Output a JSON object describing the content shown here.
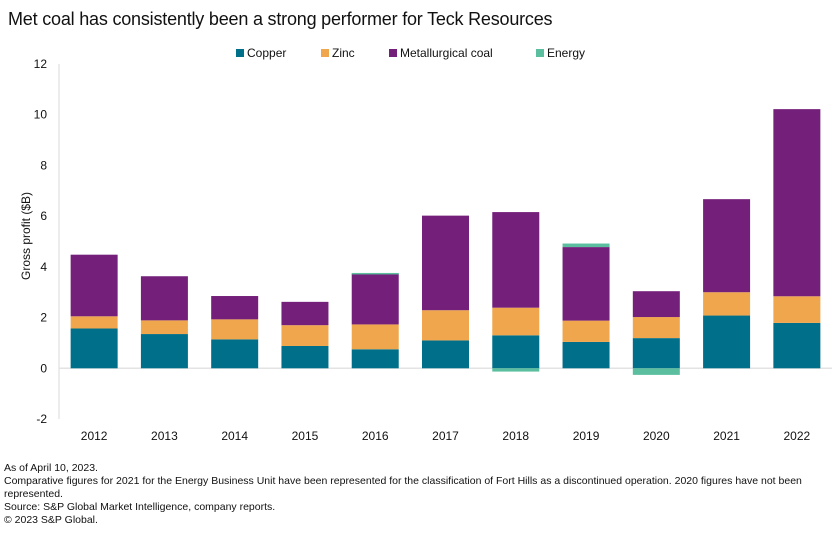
{
  "chart_data": {
    "type": "bar",
    "stacked": true,
    "title": "Met coal has consistently been a strong performer for Teck Resources",
    "xlabel": "",
    "ylabel": "Gross profit ($B)",
    "ylim": [
      -2,
      12
    ],
    "yticks": [
      -2,
      0,
      2,
      4,
      6,
      8,
      10,
      12
    ],
    "ytick_labels": [
      "-2",
      "0",
      "2",
      "4",
      "6",
      "8",
      "10",
      "12"
    ],
    "grid": false,
    "legend_position": "top-center",
    "categories": [
      "2012",
      "2013",
      "2014",
      "2015",
      "2016",
      "2017",
      "2018",
      "2019",
      "2020",
      "2021",
      "2022"
    ],
    "series": [
      {
        "name": "Copper",
        "color": "#006f89",
        "values": [
          1.57,
          1.35,
          1.14,
          0.88,
          0.75,
          1.1,
          1.3,
          1.04,
          1.19,
          2.08,
          1.79
        ]
      },
      {
        "name": "Zinc",
        "color": "#f0a64c",
        "values": [
          0.48,
          0.54,
          0.79,
          0.82,
          0.98,
          1.19,
          1.09,
          0.84,
          0.83,
          0.92,
          1.05
        ]
      },
      {
        "name": "Metallurgical coal",
        "color": "#74207a",
        "values": [
          2.43,
          1.74,
          0.92,
          0.92,
          2.0,
          3.73,
          3.77,
          2.9,
          1.02,
          3.67,
          7.38
        ]
      },
      {
        "name": "Energy",
        "color": "#5bbf9f",
        "values": [
          0,
          0,
          0,
          0,
          0.03,
          0,
          -0.13,
          0.14,
          -0.26,
          0,
          0
        ]
      }
    ]
  },
  "legend": {
    "items": [
      {
        "label": "Copper",
        "color": "#006f89"
      },
      {
        "label": "Zinc",
        "color": "#f0a64c"
      },
      {
        "label": "Metallurgical coal",
        "color": "#74207a"
      },
      {
        "label": "Energy",
        "color": "#5bbf9f"
      }
    ]
  },
  "footnotes": {
    "as_of": "As of April 10, 2023.",
    "comparative": "Comparative figures for 2021 for the Energy Business Unit have been represented for the classification of Fort Hills as a discontinued operation. 2020 figures have not been represented.",
    "source": "Source: S&P Global Market Intelligence, company reports.",
    "copyright": "© 2023 S&P Global."
  }
}
